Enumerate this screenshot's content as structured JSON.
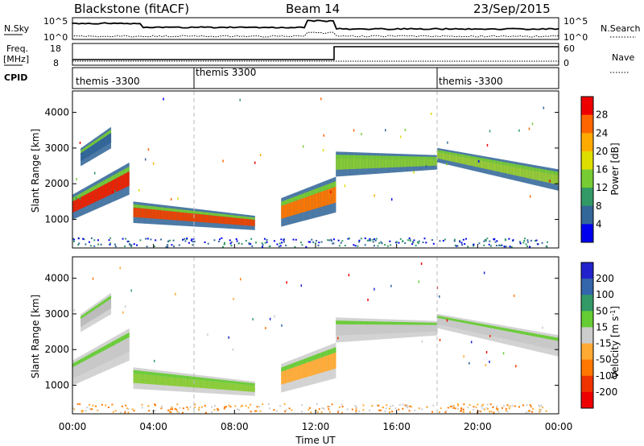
{
  "header": {
    "station": "Blackstone (fitACF)",
    "beam": "Beam 14",
    "date": "23/Sep/2015"
  },
  "top_panels": {
    "nsky_label": "N.Sky",
    "nsky_ticks": [
      "10^5",
      "10^0"
    ],
    "nsearch_label": "N.Search",
    "nsearch_ticks": [
      "10^5",
      "10^0"
    ],
    "freq_label": "Freq.",
    "freq_unit": "[MHz]",
    "freq_ticks": [
      "18",
      "8"
    ],
    "nave_label": "Nave",
    "nave_ticks": [
      "60",
      "0"
    ],
    "cpid_label": "CPID",
    "cpid_segments": [
      {
        "label": "themis -3300",
        "start_h": 0
      },
      {
        "label": "themis 3300",
        "start_h": 6
      },
      {
        "label": "themis -3300",
        "start_h": 18
      }
    ]
  },
  "chart_data": [
    {
      "type": "heatmap",
      "title": "",
      "xlabel": "Time UT",
      "ylabel": "Slant Range [km]",
      "x_ticks": [
        "00:00",
        "04:00",
        "08:00",
        "12:00",
        "16:00",
        "20:00",
        "00:00"
      ],
      "xlim": [
        0,
        24
      ],
      "y_ticks": [
        "1000",
        "2000",
        "3000",
        "4000"
      ],
      "ylim": [
        200,
        4600
      ],
      "colorbar_label": "Power [dB]",
      "colorbar_ticks": [
        "28",
        "24",
        "20",
        "16",
        "12",
        "8",
        "4"
      ],
      "colorbar_colors": [
        "#ee0000",
        "#ff6600",
        "#ffaa00",
        "#dddd00",
        "#77cc33",
        "#339966",
        "#336699",
        "#0000ee"
      ],
      "scatter_regions": [
        {
          "t0": 0.0,
          "t1": 2.8,
          "r_lo0": 1000,
          "r_hi0": 1700,
          "r_lo1": 1700,
          "r_hi1": 2600,
          "core": "#ee2200"
        },
        {
          "t0": 0.4,
          "t1": 1.9,
          "r_lo0": 2500,
          "r_hi0": 3000,
          "r_lo1": 3000,
          "r_hi1": 3600,
          "core": "#336699"
        },
        {
          "t0": 3.0,
          "t1": 9.0,
          "r_lo0": 900,
          "r_hi0": 1500,
          "r_lo1": 700,
          "r_hi1": 1100,
          "core": "#ee4400"
        },
        {
          "t0": 10.3,
          "t1": 13.0,
          "r_lo0": 800,
          "r_hi0": 1600,
          "r_lo1": 1200,
          "r_hi1": 2200,
          "core": "#ff7700"
        },
        {
          "t0": 13.0,
          "t1": 18.0,
          "r_lo0": 2200,
          "r_hi0": 2900,
          "r_lo1": 2400,
          "r_hi1": 2800,
          "core": "#88cc33"
        },
        {
          "t0": 18.0,
          "t1": 24.0,
          "r_lo0": 2600,
          "r_hi0": 3000,
          "r_lo1": 1800,
          "r_hi1": 2400,
          "core": "#99cc33"
        }
      ]
    },
    {
      "type": "heatmap",
      "title": "",
      "xlabel": "Time UT",
      "ylabel": "Slant Range [km]",
      "x_ticks": [
        "00:00",
        "04:00",
        "08:00",
        "12:00",
        "16:00",
        "20:00",
        "00:00"
      ],
      "xlim": [
        0,
        24
      ],
      "y_ticks": [
        "1000",
        "2000",
        "3000",
        "4000"
      ],
      "ylim": [
        200,
        4600
      ],
      "colorbar_label": "Velocity [m s^-1]",
      "colorbar_ticks": [
        "200",
        "100",
        "50",
        "15",
        "-15",
        "-50",
        "-100",
        "-200"
      ],
      "colorbar_colors": [
        "#2222cc",
        "#3366aa",
        "#339966",
        "#66cc33",
        "#cccccc",
        "#ffaa33",
        "#ff7700",
        "#ee3300",
        "#ee0000"
      ],
      "scatter_regions": [
        {
          "t0": 0.0,
          "t1": 2.8,
          "r_lo0": 1000,
          "r_hi0": 1700,
          "r_lo1": 1700,
          "r_hi1": 2600,
          "core": "#c8c8c8"
        },
        {
          "t0": 0.4,
          "t1": 1.9,
          "r_lo0": 2500,
          "r_hi0": 3000,
          "r_lo1": 3000,
          "r_hi1": 3600,
          "core": "#bbbbbb"
        },
        {
          "t0": 3.0,
          "t1": 9.0,
          "r_lo0": 900,
          "r_hi0": 1500,
          "r_lo1": 700,
          "r_hi1": 1100,
          "core": "#88cc33"
        },
        {
          "t0": 10.3,
          "t1": 13.0,
          "r_lo0": 800,
          "r_hi0": 1600,
          "r_lo1": 1200,
          "r_hi1": 2200,
          "core": "#ffaa33"
        },
        {
          "t0": 13.0,
          "t1": 18.0,
          "r_lo0": 2200,
          "r_hi0": 2900,
          "r_lo1": 2400,
          "r_hi1": 2800,
          "core": "#c8c8c8"
        },
        {
          "t0": 18.0,
          "t1": 24.0,
          "r_lo0": 2600,
          "r_hi0": 3000,
          "r_lo1": 1800,
          "r_hi1": 2400,
          "core": "#c8c8c8"
        }
      ]
    }
  ]
}
